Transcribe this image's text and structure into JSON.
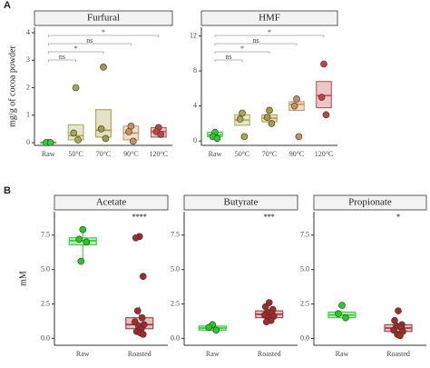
{
  "panels": [
    "A",
    "B"
  ],
  "chart_data": [
    {
      "type": "box",
      "title": "Furfural",
      "ylabel": "mg/g of cocoa powder",
      "categories": [
        "Raw",
        "50°C",
        "70°C",
        "90°C",
        "120°C"
      ],
      "colors": [
        "#33cc33",
        "#a9a94a",
        "#a89a3c",
        "#c8905a",
        "#c04444"
      ],
      "boxes": [
        {
          "q1": 0,
          "median": 0,
          "q3": 0.02
        },
        {
          "q1": 0.1,
          "median": 0.25,
          "q3": 0.65
        },
        {
          "q1": 0.2,
          "median": 0.45,
          "q3": 1.2
        },
        {
          "q1": 0.1,
          "median": 0.35,
          "q3": 0.6
        },
        {
          "q1": 0.2,
          "median": 0.4,
          "q3": 0.55
        }
      ],
      "points": [
        [
          0,
          0,
          0
        ],
        [
          2.0,
          0.35,
          0.1
        ],
        [
          2.75,
          0.5,
          0.15
        ],
        [
          0.6,
          0.4,
          0.05
        ],
        [
          0.55,
          0.4,
          0.3
        ]
      ],
      "ylim": [
        -0.1,
        4.2
      ],
      "yticks": [
        0,
        1,
        2,
        3,
        4
      ],
      "comparisons": [
        {
          "label": "ns",
          "categories": [
            0,
            1
          ]
        },
        {
          "label": "*",
          "categories": [
            0,
            2
          ]
        },
        {
          "label": "ns",
          "categories": [
            0,
            3
          ]
        },
        {
          "label": "*",
          "categories": [
            0,
            4
          ]
        }
      ]
    },
    {
      "type": "box",
      "title": "HMF",
      "categories": [
        "Raw",
        "50°C",
        "70°C",
        "90°C",
        "120°C"
      ],
      "colors": [
        "#33cc33",
        "#a9a94a",
        "#a89a3c",
        "#c8905a",
        "#c04444"
      ],
      "boxes": [
        {
          "q1": 0.5,
          "median": 0.7,
          "q3": 1.0
        },
        {
          "q1": 1.8,
          "median": 2.4,
          "q3": 3.0
        },
        {
          "q1": 2.2,
          "median": 2.6,
          "q3": 3.0
        },
        {
          "q1": 3.5,
          "median": 4.2,
          "q3": 4.5
        },
        {
          "q1": 3.8,
          "median": 5.2,
          "q3": 6.8
        }
      ],
      "points": [
        [
          1.0,
          0.5,
          0.3
        ],
        [
          3.2,
          2.5,
          0.5
        ],
        [
          3.5,
          2.7,
          2.0
        ],
        [
          4.8,
          4.0,
          0.5
        ],
        [
          8.8,
          5.0,
          3.0
        ]
      ],
      "ylim": [
        -0.5,
        13
      ],
      "yticks": [
        0,
        4,
        8,
        12
      ],
      "comparisons": [
        {
          "label": "ns",
          "categories": [
            0,
            1
          ]
        },
        {
          "label": "*",
          "categories": [
            0,
            2
          ]
        },
        {
          "label": "ns",
          "categories": [
            0,
            3
          ]
        },
        {
          "label": "*",
          "categories": [
            0,
            4
          ]
        }
      ]
    },
    {
      "type": "box",
      "title": "Acetate",
      "ylabel": "mM",
      "categories": [
        "Raw",
        "Roasted"
      ],
      "colors": [
        "#22cc22",
        "#a52a2a"
      ],
      "boxes": [
        {
          "low": 5.6,
          "q1": 6.8,
          "median": 7.1,
          "q3": 7.3,
          "high": 7.9
        },
        {
          "low": 0.3,
          "q1": 0.7,
          "median": 1.0,
          "q3": 1.5,
          "high": 2.3
        }
      ],
      "points": [
        [
          7.9,
          7.2,
          7.0,
          5.6
        ],
        [
          7.4,
          7.3,
          4.5,
          2.0,
          1.5,
          1.2,
          1.0,
          0.9,
          0.7,
          0.5,
          0.4,
          0.3
        ]
      ],
      "ylim": [
        -0.5,
        9.2
      ],
      "yticks": [
        {
          "value": 0,
          "label": "0.0"
        },
        {
          "value": 2.5,
          "label": "2.5"
        },
        {
          "value": 5,
          "label": "5.0"
        },
        {
          "value": 7.5,
          "label": "7.5"
        }
      ],
      "significance": "****"
    },
    {
      "type": "box",
      "title": "Butyrate",
      "categories": [
        "Raw",
        "Roasted"
      ],
      "colors": [
        "#22cc22",
        "#a52a2a"
      ],
      "boxes": [
        {
          "q1": 0.6,
          "median": 0.75,
          "q3": 0.9
        },
        {
          "q1": 1.5,
          "median": 1.75,
          "q3": 2.0
        }
      ],
      "points": [
        [
          1.0,
          0.8,
          0.6
        ],
        [
          2.6,
          2.3,
          2.1,
          1.9,
          1.8,
          1.7,
          1.6,
          1.5,
          1.3,
          1.2
        ]
      ],
      "ylim": [
        -0.5,
        9.2
      ],
      "yticks": [
        {
          "value": 0,
          "label": "0.0"
        },
        {
          "value": 2.5,
          "label": "2.5"
        },
        {
          "value": 5,
          "label": "5.0"
        },
        {
          "value": 7.5,
          "label": "7.5"
        }
      ],
      "significance": "***"
    },
    {
      "type": "box",
      "title": "Propionate",
      "categories": [
        "Raw",
        "Roasted"
      ],
      "colors": [
        "#22cc22",
        "#a52a2a"
      ],
      "boxes": [
        {
          "q1": 1.5,
          "median": 1.7,
          "q3": 1.9
        },
        {
          "q1": 0.5,
          "median": 0.75,
          "q3": 1.0
        }
      ],
      "points": [
        [
          2.4,
          1.8,
          1.5
        ],
        [
          2.0,
          1.3,
          1.0,
          0.9,
          0.8,
          0.6,
          0.5,
          0.3,
          0.2
        ]
      ],
      "ylim": [
        -0.5,
        9.2
      ],
      "yticks": [
        {
          "value": 0,
          "label": "0.0"
        },
        {
          "value": 2.5,
          "label": "2.5"
        },
        {
          "value": 5,
          "label": "5.0"
        },
        {
          "value": 7.5,
          "label": "7.5"
        }
      ],
      "significance": "*"
    }
  ]
}
